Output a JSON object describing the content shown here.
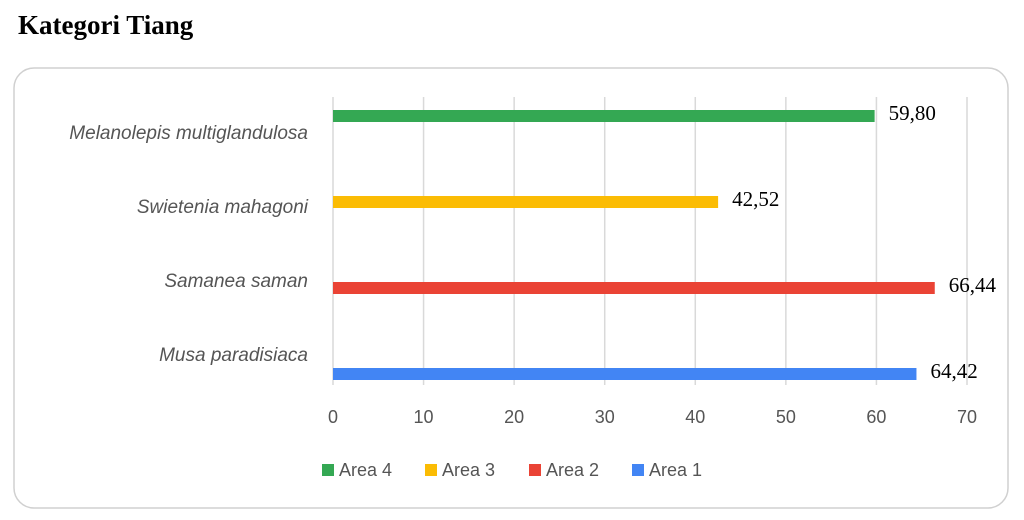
{
  "chart_data": {
    "type": "hbar",
    "title": "Kategori Tiang",
    "categories": [
      "Melanolepis multiglandulosa",
      "Swietenia mahagoni",
      "Samanea saman",
      "Musa paradisiaca"
    ],
    "series": [
      {
        "name": "Area 4",
        "color": "#34a853",
        "values": [
          59.8,
          null,
          null,
          null
        ],
        "value_labels": [
          "59,80",
          null,
          null,
          null
        ]
      },
      {
        "name": "Area 3",
        "color": "#fbbc04",
        "values": [
          null,
          42.52,
          null,
          null
        ],
        "value_labels": [
          null,
          "42,52",
          null,
          null
        ]
      },
      {
        "name": "Area 2",
        "color": "#ea4335",
        "values": [
          null,
          null,
          66.44,
          null
        ],
        "value_labels": [
          null,
          null,
          "66,44",
          null
        ]
      },
      {
        "name": "Area 1",
        "color": "#4285f4",
        "values": [
          null,
          null,
          null,
          64.42
        ],
        "value_labels": [
          null,
          null,
          null,
          "64,42"
        ]
      }
    ],
    "xlim": [
      0,
      70
    ],
    "xticks": [
      0,
      10,
      20,
      30,
      40,
      50,
      60,
      70
    ],
    "grid": true,
    "legend": "bottom"
  }
}
